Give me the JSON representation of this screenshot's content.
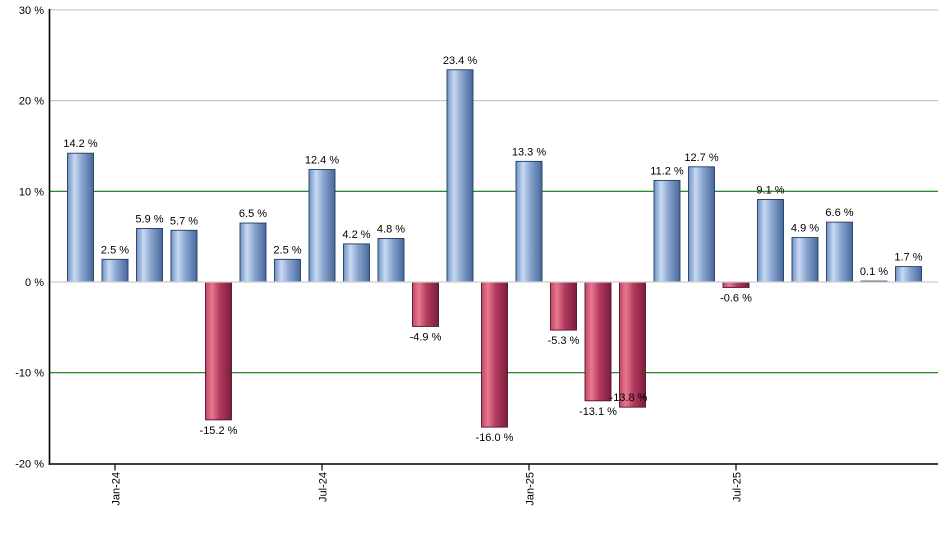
{
  "chart_data": {
    "type": "bar",
    "title": "",
    "value_suffix": " %",
    "values": [
      14.2,
      2.5,
      5.9,
      5.7,
      -15.2,
      6.5,
      2.5,
      12.4,
      4.2,
      4.8,
      -4.9,
      23.4,
      -16.0,
      13.3,
      -5.3,
      -13.1,
      -13.8,
      11.2,
      12.7,
      -0.6,
      9.1,
      4.9,
      6.6,
      0.1,
      1.7
    ],
    "bar_value_labels": [
      "14.2 %",
      "2.5 %",
      "5.9 %",
      "5.7 %",
      "-15.2 %",
      "6.5 %",
      "2.5 %",
      "12.4 %",
      "4.2 %",
      "4.8 %",
      "-4.9 %",
      "23.4 %",
      "-16.0 %",
      "13.3 %",
      "-5.3 %",
      "-13.1 %",
      "-13.8 %",
      "11.2 %",
      "12.7 %",
      "-0.6 %",
      "9.1 %",
      "4.9 %",
      "6.6 %",
      "0.1 %",
      "1.7 %"
    ],
    "x_tick_labels": [
      {
        "bar_index": 1,
        "label": "Jan-24"
      },
      {
        "bar_index": 7,
        "label": "Jul-24"
      },
      {
        "bar_index": 13,
        "label": "Jan-25"
      },
      {
        "bar_index": 19,
        "label": "Jul-25"
      }
    ],
    "y_ticks": [
      {
        "value": 30,
        "label": "30 %",
        "grid_color": "#c8c8c8"
      },
      {
        "value": 20,
        "label": "20 %",
        "grid_color": "#c8c8c8"
      },
      {
        "value": 10,
        "label": "10 %",
        "grid_color": "#0a7c0a"
      },
      {
        "value": 0,
        "label": "0 %",
        "grid_color": "#d2d2d2"
      },
      {
        "value": -10,
        "label": "-10 %",
        "grid_color": "#0a7c0a"
      },
      {
        "value": -20,
        "label": "-20 %",
        "grid_color": null
      }
    ],
    "ylim": [
      -20,
      30
    ],
    "grid": "horizontal-only",
    "legend": null,
    "colors": {
      "background": "#ffffff",
      "axis": "#000000",
      "label_text": "#000000",
      "positive_bar": {
        "stops": [
          [
            0,
            "#6c92c4"
          ],
          [
            0.27,
            "#c9d9f2"
          ],
          [
            0.55,
            "#8aa6d0"
          ],
          [
            1,
            "#47689b"
          ]
        ],
        "stroke": "#203c60"
      },
      "negative_bar": {
        "stops": [
          [
            0,
            "#c64566"
          ],
          [
            0.25,
            "#e5798f"
          ],
          [
            0.55,
            "#b23a5e"
          ],
          [
            1,
            "#7b1d3d"
          ]
        ],
        "stroke": "#521229"
      }
    },
    "label_overrides": {
      "16": {
        "dx": -4,
        "dy": -20
      }
    }
  }
}
